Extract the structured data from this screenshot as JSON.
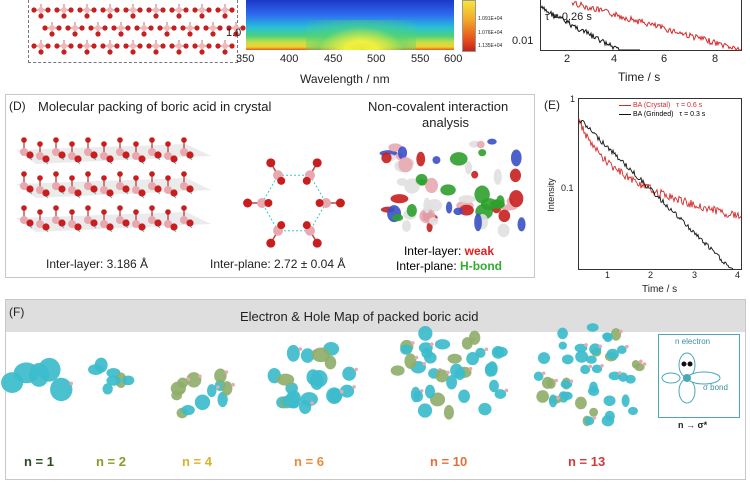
{
  "top": {
    "tick_1_0": "1.0",
    "x_ticks": [
      "350",
      "400",
      "450",
      "500",
      "550",
      "600"
    ],
    "xlabel": "Wavelength / nm",
    "colorbar_labels": [
      "1.091E+04",
      "1.076E+04",
      "1.135E+04"
    ],
    "tau_label": "τ = 0.26 s",
    "tick_001": "0.01",
    "right_x_ticks": [
      "2",
      "4",
      "6",
      "8"
    ],
    "right_xlabel": "Time / s"
  },
  "panel_d": {
    "label": "(D)",
    "title": "Molecular packing of boric acid in crystal",
    "subtitle_line1": "Non-covalent interaction",
    "subtitle_line2": "analysis",
    "inter_layer_caption": "Inter-layer: 3.186 Å",
    "inter_plane_caption": "Inter-plane: 2.72 ± 0.04 Å",
    "nci_layer_prefix": "Inter-layer: ",
    "nci_layer_value": "weak",
    "nci_plane_prefix": "Inter-plane: ",
    "nci_plane_value": "H-bond",
    "colors": {
      "weak": "#e02020",
      "hbond": "#2fae2f"
    }
  },
  "panel_e": {
    "label": "(E)",
    "ylabel": "Intensity",
    "xlabel": "Time / s",
    "y_tick_top": "1",
    "y_tick_mid": "0.1",
    "x_ticks": [
      "1",
      "2",
      "3",
      "4"
    ],
    "legend": [
      {
        "name": "BA (Crystal)",
        "tau": "τ = 0.6 s",
        "color": "#d42a2a"
      },
      {
        "name": "BA (Grinded)",
        "tau": "τ = 0.3 s",
        "color": "#111111"
      }
    ]
  },
  "panel_f": {
    "label": "(F)",
    "title": "Electron & Hole Map of packed boric acid",
    "n_labels": [
      {
        "text": "n = 1",
        "color": "#2d4a22"
      },
      {
        "text": "n = 2",
        "color": "#8a9a2a"
      },
      {
        "text": "n = 4",
        "color": "#d8b32a"
      },
      {
        "text": "n = 6",
        "color": "#e88a3a"
      },
      {
        "text": "n = 10",
        "color": "#e3703a"
      },
      {
        "text": "n = 13",
        "color": "#d23a3a"
      }
    ],
    "inset": {
      "n_electron": "n electron",
      "sigma_bond": "σ bond",
      "transition": "n → σ*"
    }
  }
}
